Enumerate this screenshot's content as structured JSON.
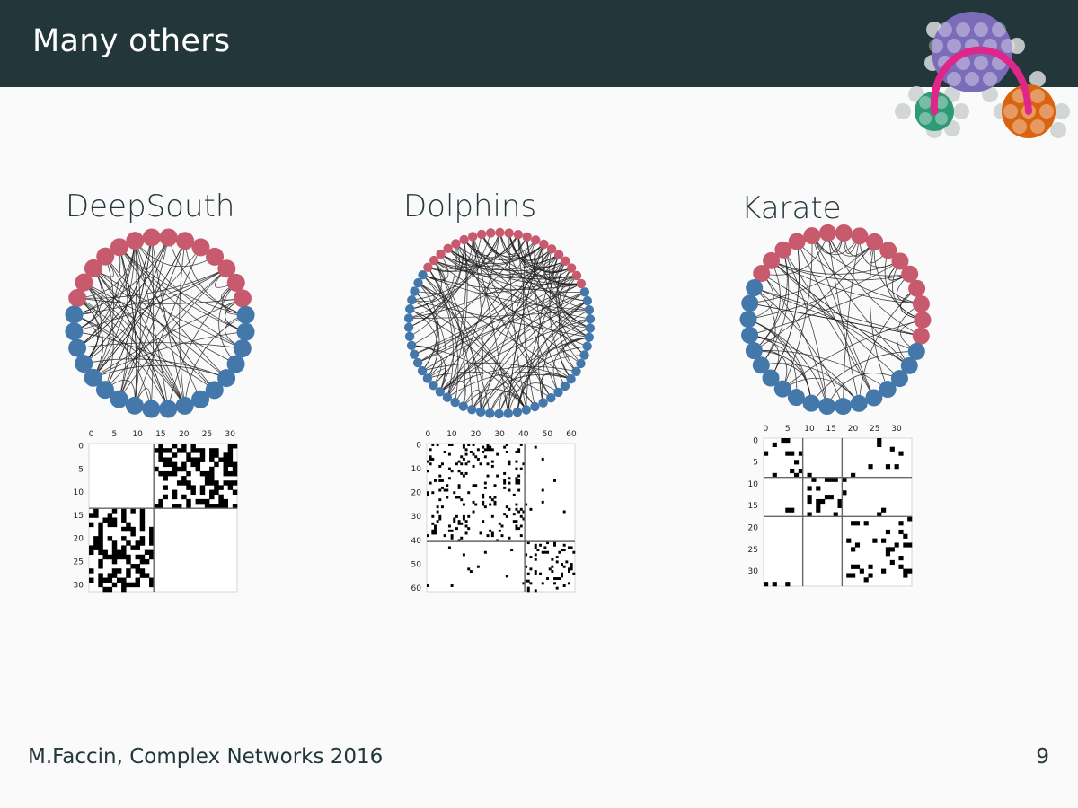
{
  "slide": {
    "title": "Many others",
    "footer": "M.Faccin, Complex Networks 2016",
    "page_number": "9"
  },
  "colors": {
    "header_bg": "#23373b",
    "node_red": "#c85a6e",
    "node_blue": "#4477aa",
    "logo_purple": "#7a6cb8",
    "logo_green": "#2e9a77",
    "logo_orange": "#d9640f",
    "logo_arc": "#e0268a"
  },
  "networks": [
    {
      "name": "DeepSouth",
      "nodes": 32,
      "groups": [
        {
          "color": "red",
          "size": 14
        },
        {
          "color": "blue",
          "size": 18
        }
      ],
      "matrix_ticks": [
        "0",
        "5",
        "10",
        "15",
        "20",
        "25",
        "30"
      ]
    },
    {
      "name": "Dolphins",
      "nodes": 62,
      "groups": [
        {
          "color": "red",
          "size": 21
        },
        {
          "color": "blue",
          "size": 41
        }
      ],
      "matrix_ticks": [
        "0",
        "10",
        "20",
        "30",
        "40",
        "50",
        "60"
      ]
    },
    {
      "name": "Karate",
      "nodes": 34,
      "groups": [
        {
          "color": "red",
          "size": 16
        },
        {
          "color": "blue",
          "size": 18
        }
      ],
      "matrix_ticks": [
        "0",
        "5",
        "10",
        "15",
        "20",
        "25",
        "30"
      ]
    }
  ]
}
